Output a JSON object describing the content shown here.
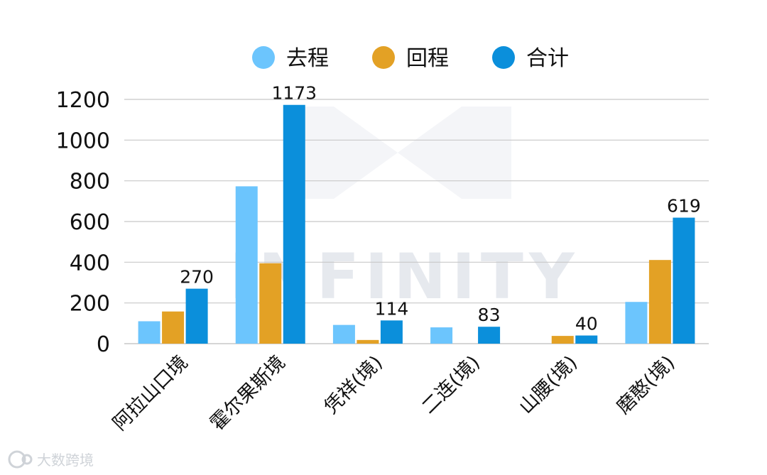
{
  "watermark": {
    "text": "INFINITY",
    "logo_text": "大数跨境"
  },
  "chart_data": {
    "type": "bar",
    "categories": [
      "阿拉山口境",
      "霍尔果斯境",
      "凭祥(境)",
      "二连(境)",
      "山腰(境)",
      "磨憨(境)"
    ],
    "series": [
      {
        "name": "去程",
        "color": "#6cc5fd",
        "values": [
          110,
          773,
          92,
          80,
          0,
          205
        ]
      },
      {
        "name": "回程",
        "color": "#e3a125",
        "values": [
          158,
          395,
          18,
          0,
          38,
          411
        ]
      },
      {
        "name": "合计",
        "color": "#0b8fdb",
        "values": [
          270,
          1173,
          114,
          83,
          40,
          619
        ]
      }
    ],
    "data_labels": {
      "series": "合计",
      "values": [
        "270",
        "1173",
        "114",
        "83",
        "40",
        "619"
      ]
    },
    "ylim": [
      0,
      1200
    ],
    "yticks": [
      "0",
      "200",
      "400",
      "600",
      "800",
      "1000",
      "1200"
    ],
    "ytick_values": [
      0,
      200,
      400,
      600,
      800,
      1000,
      1200
    ],
    "grid": true,
    "legend": "top-center",
    "gridline_color": "#c8c8c8"
  }
}
